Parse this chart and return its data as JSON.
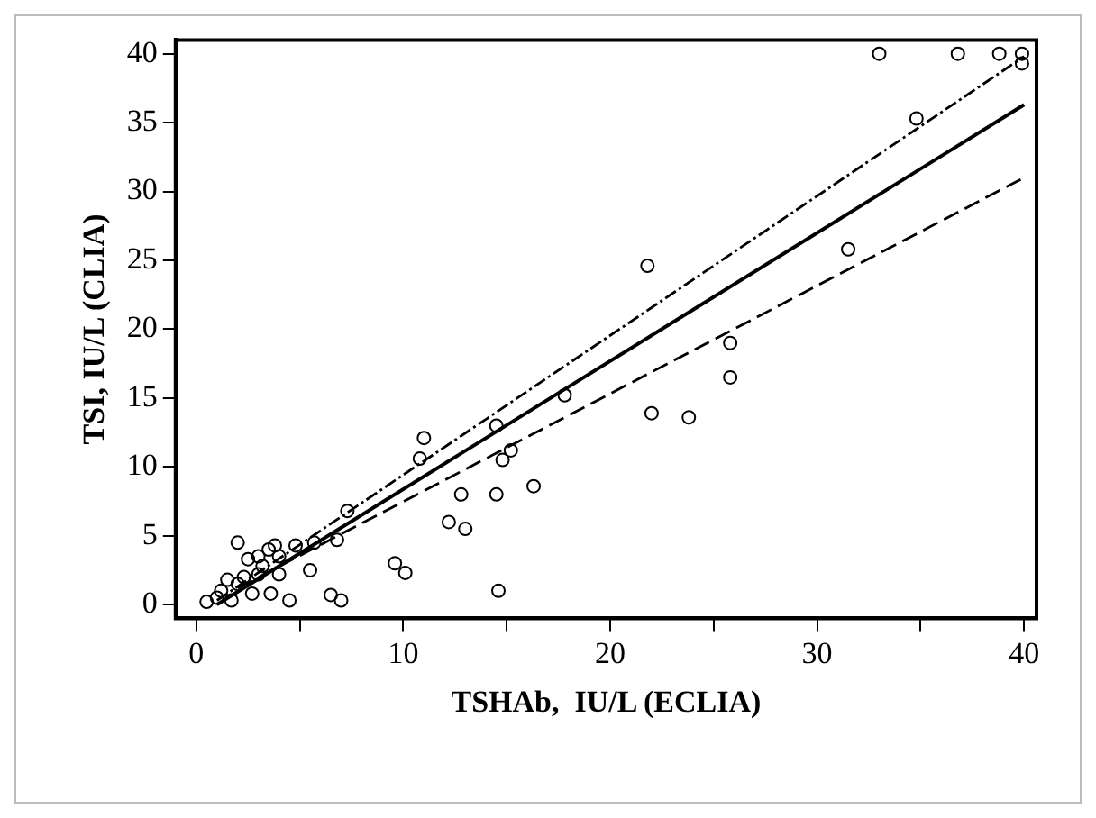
{
  "chart_data": {
    "type": "scatter",
    "xlabel": "TSHAb,  IU/L (ECLIA)",
    "ylabel": "TSI, IU/L (CLIA)",
    "xlim": [
      -1,
      40.6
    ],
    "ylim": [
      -1,
      41
    ],
    "xticks": [
      0,
      {
        "value": 5,
        "label": null
      },
      10,
      {
        "value": 15,
        "label": null
      },
      20,
      {
        "value": 25,
        "label": null
      },
      30,
      {
        "value": 35,
        "label": null
      },
      40
    ],
    "yticks": [
      0,
      5,
      10,
      15,
      20,
      25,
      30,
      35,
      40
    ],
    "grid": false,
    "legend": false,
    "series": [
      {
        "color": "#000000",
        "marker": "circle",
        "x": [
          0.5,
          1,
          1.2,
          1.5,
          1.7,
          2,
          2,
          2.3,
          2.5,
          2.7,
          3,
          3,
          3.2,
          3.5,
          3.6,
          3.8,
          4,
          4,
          4.5,
          4.8,
          5.5,
          5.7,
          6.5,
          6.8,
          7,
          7.3,
          9.6,
          10.1,
          10.8,
          11,
          12.2,
          12.8,
          13,
          14.5,
          14.5,
          14.6,
          14.8,
          15.2,
          16.3,
          17.8,
          21.8,
          22,
          23.8,
          25.8,
          25.8,
          31.5,
          33,
          34.8,
          36.8,
          38.8,
          39.9,
          39.9
        ],
        "values": [
          0.2,
          0.5,
          1,
          1.8,
          0.3,
          1.5,
          4.5,
          2,
          3.3,
          0.8,
          3.5,
          2.2,
          2.8,
          4,
          0.8,
          4.3,
          3.5,
          2.2,
          0.3,
          4.3,
          2.5,
          4.5,
          0.7,
          4.7,
          0.3,
          6.8,
          3,
          2.3,
          10.6,
          12.1,
          6,
          8,
          5.5,
          13,
          8,
          1,
          10.5,
          11.2,
          8.6,
          15.2,
          24.6,
          13.9,
          13.6,
          19,
          16.5,
          25.8,
          40,
          35.3,
          40,
          40,
          40,
          39.3
        ]
      },
      {
        "type": "line",
        "color": "#000000",
        "marker": "none",
        "line_style": "solid",
        "x": [
          1,
          40
        ],
        "values": [
          0,
          36.3
        ]
      },
      {
        "type": "line",
        "color": "#000000",
        "marker": "none",
        "line_style": "dotted",
        "x": [
          1,
          40
        ],
        "values": [
          0.3,
          39.8
        ]
      },
      {
        "type": "line",
        "color": "#000000",
        "marker": "none",
        "line_style": "dashed",
        "x": [
          2,
          40
        ],
        "values": [
          1.2,
          31
        ]
      }
    ]
  }
}
